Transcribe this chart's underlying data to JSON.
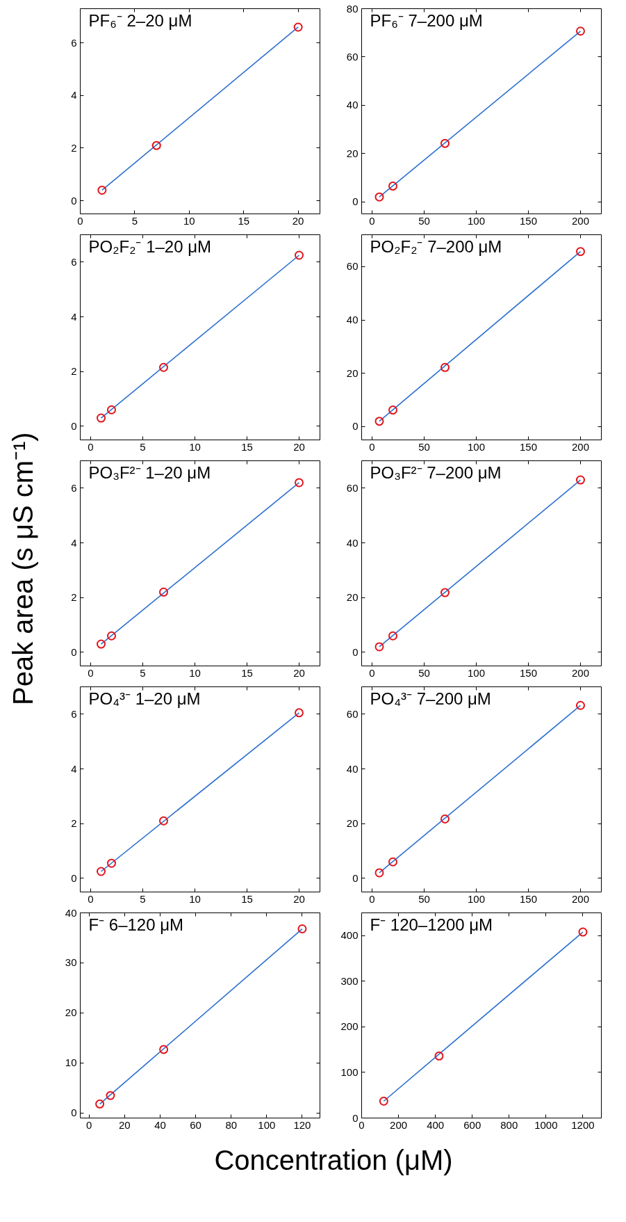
{
  "chart_data": [
    {
      "type": "scatter",
      "title": "PF₆⁻ 2–20 μM",
      "xlim": [
        0,
        22
      ],
      "ylim": [
        -0.5,
        7.3
      ],
      "xticks": [
        0,
        5,
        10,
        15,
        20
      ],
      "yticks": [
        0,
        2,
        4,
        6
      ],
      "grid": false,
      "series": [
        {
          "type": "scatter",
          "marker": "circle",
          "color": "#e3141b",
          "x": [
            2,
            7,
            20
          ],
          "values": [
            0.4,
            2.1,
            6.6
          ]
        },
        {
          "type": "line",
          "marker": "none",
          "color": "#2a6fcf",
          "x": [
            2,
            20
          ],
          "values": [
            0.4,
            6.6
          ]
        }
      ]
    },
    {
      "type": "scatter",
      "title": "PF₆⁻ 7–200 μM",
      "xlim": [
        -10,
        220
      ],
      "ylim": [
        -5,
        80
      ],
      "xticks": [
        0,
        50,
        100,
        150,
        200
      ],
      "yticks": [
        0,
        20,
        40,
        60,
        80
      ],
      "grid": false,
      "series": [
        {
          "type": "scatter",
          "marker": "circle",
          "color": "#e3141b",
          "x": [
            7,
            20,
            70,
            200
          ],
          "values": [
            2,
            6.5,
            24.2,
            70.7
          ]
        },
        {
          "type": "line",
          "marker": "none",
          "color": "#2a6fcf",
          "x": [
            7,
            200
          ],
          "values": [
            2,
            70.7
          ]
        }
      ]
    },
    {
      "type": "scatter",
      "title": "PO₂F₂⁻ 1–20 μM",
      "xlim": [
        -1,
        22
      ],
      "ylim": [
        -0.5,
        7
      ],
      "xticks": [
        0,
        5,
        10,
        15,
        20
      ],
      "yticks": [
        0,
        2,
        4,
        6
      ],
      "grid": false,
      "series": [
        {
          "type": "scatter",
          "marker": "circle",
          "color": "#e3141b",
          "x": [
            1,
            2,
            7,
            20
          ],
          "values": [
            0.3,
            0.6,
            2.15,
            6.25
          ]
        },
        {
          "type": "line",
          "marker": "none",
          "color": "#2a6fcf",
          "x": [
            1,
            20
          ],
          "values": [
            0.3,
            6.25
          ]
        }
      ]
    },
    {
      "type": "scatter",
      "title": "PO₂F₂⁻ 7–200 μM",
      "xlim": [
        -10,
        220
      ],
      "ylim": [
        -5,
        72
      ],
      "xticks": [
        0,
        50,
        100,
        150,
        200
      ],
      "yticks": [
        0,
        20,
        40,
        60
      ],
      "grid": false,
      "series": [
        {
          "type": "scatter",
          "marker": "circle",
          "color": "#e3141b",
          "x": [
            7,
            20,
            70,
            200
          ],
          "values": [
            2,
            6.2,
            22.2,
            65.7
          ]
        },
        {
          "type": "line",
          "marker": "none",
          "color": "#2a6fcf",
          "x": [
            7,
            200
          ],
          "values": [
            2,
            65.7
          ]
        }
      ]
    },
    {
      "type": "scatter",
      "title": "PO₃F²⁻ 1–20 μM",
      "annotations": [
        "Peak area (s μS cm⁻¹)"
      ],
      "xlim": [
        -1,
        22
      ],
      "ylim": [
        -0.5,
        7
      ],
      "xticks": [
        0,
        5,
        10,
        15,
        20
      ],
      "yticks": [
        0,
        2,
        4,
        6
      ],
      "grid": false,
      "series": [
        {
          "type": "scatter",
          "marker": "circle",
          "color": "#e3141b",
          "x": [
            1,
            2,
            7,
            20
          ],
          "values": [
            0.3,
            0.6,
            2.2,
            6.2
          ]
        },
        {
          "type": "line",
          "marker": "none",
          "color": "#2a6fcf",
          "x": [
            1,
            20
          ],
          "values": [
            0.3,
            6.2
          ]
        }
      ]
    },
    {
      "type": "scatter",
      "title": "PO₃F²⁻ 7–200 μM",
      "xlim": [
        -10,
        220
      ],
      "ylim": [
        -5,
        70
      ],
      "xticks": [
        0,
        50,
        100,
        150,
        200
      ],
      "yticks": [
        0,
        20,
        40,
        60
      ],
      "grid": false,
      "series": [
        {
          "type": "scatter",
          "marker": "circle",
          "color": "#e3141b",
          "x": [
            7,
            20,
            70,
            200
          ],
          "values": [
            2,
            6,
            21.8,
            63
          ]
        },
        {
          "type": "line",
          "marker": "none",
          "color": "#2a6fcf",
          "x": [
            7,
            200
          ],
          "values": [
            2,
            63
          ]
        }
      ]
    },
    {
      "type": "scatter",
      "title": "PO₄³⁻ 1–20 μM",
      "xlim": [
        -1,
        22
      ],
      "ylim": [
        -0.5,
        7
      ],
      "xticks": [
        0,
        5,
        10,
        15,
        20
      ],
      "yticks": [
        0,
        2,
        4,
        6
      ],
      "grid": false,
      "series": [
        {
          "type": "scatter",
          "marker": "circle",
          "color": "#e3141b",
          "x": [
            1,
            2,
            7,
            20
          ],
          "values": [
            0.25,
            0.55,
            2.1,
            6.05
          ]
        },
        {
          "type": "line",
          "marker": "none",
          "color": "#2a6fcf",
          "x": [
            1,
            20
          ],
          "values": [
            0.25,
            6.05
          ]
        }
      ]
    },
    {
      "type": "scatter",
      "title": "PO₄³⁻ 7–200 μM",
      "xlim": [
        -10,
        220
      ],
      "ylim": [
        -5,
        70
      ],
      "xticks": [
        0,
        50,
        100,
        150,
        200
      ],
      "yticks": [
        0,
        20,
        40,
        60
      ],
      "grid": false,
      "series": [
        {
          "type": "scatter",
          "marker": "circle",
          "color": "#e3141b",
          "x": [
            7,
            20,
            70,
            200
          ],
          "values": [
            2,
            6,
            21.7,
            63.2
          ]
        },
        {
          "type": "line",
          "marker": "none",
          "color": "#2a6fcf",
          "x": [
            7,
            200
          ],
          "values": [
            2,
            63.2
          ]
        }
      ]
    },
    {
      "type": "scatter",
      "title": "F⁻ 6–120 μM",
      "annotations": [
        "Concentration (μM)"
      ],
      "xlim": [
        -5,
        130
      ],
      "ylim": [
        -1,
        40
      ],
      "xticks": [
        0,
        20,
        40,
        60,
        80,
        100,
        120
      ],
      "yticks": [
        0,
        10,
        20,
        30,
        40
      ],
      "grid": false,
      "series": [
        {
          "type": "scatter",
          "marker": "circle",
          "color": "#e3141b",
          "x": [
            6,
            12,
            42,
            120
          ],
          "values": [
            1.8,
            3.5,
            12.7,
            36.8
          ]
        },
        {
          "type": "line",
          "marker": "none",
          "color": "#2a6fcf",
          "x": [
            6,
            120
          ],
          "values": [
            1.8,
            36.8
          ]
        }
      ]
    },
    {
      "type": "scatter",
      "title": "F⁻ 120–1200 μM",
      "xlim": [
        0,
        1300
      ],
      "ylim": [
        0,
        450
      ],
      "xticks": [
        0,
        200,
        400,
        600,
        800,
        1000,
        1200
      ],
      "yticks": [
        0,
        100,
        200,
        300,
        400
      ],
      "grid": false,
      "series": [
        {
          "type": "scatter",
          "marker": "circle",
          "color": "#e3141b",
          "x": [
            120,
            420,
            1200
          ],
          "values": [
            37,
            136,
            408
          ]
        },
        {
          "type": "line",
          "marker": "none",
          "color": "#2a6fcf",
          "x": [
            120,
            1200
          ],
          "values": [
            37,
            408
          ]
        }
      ]
    }
  ]
}
